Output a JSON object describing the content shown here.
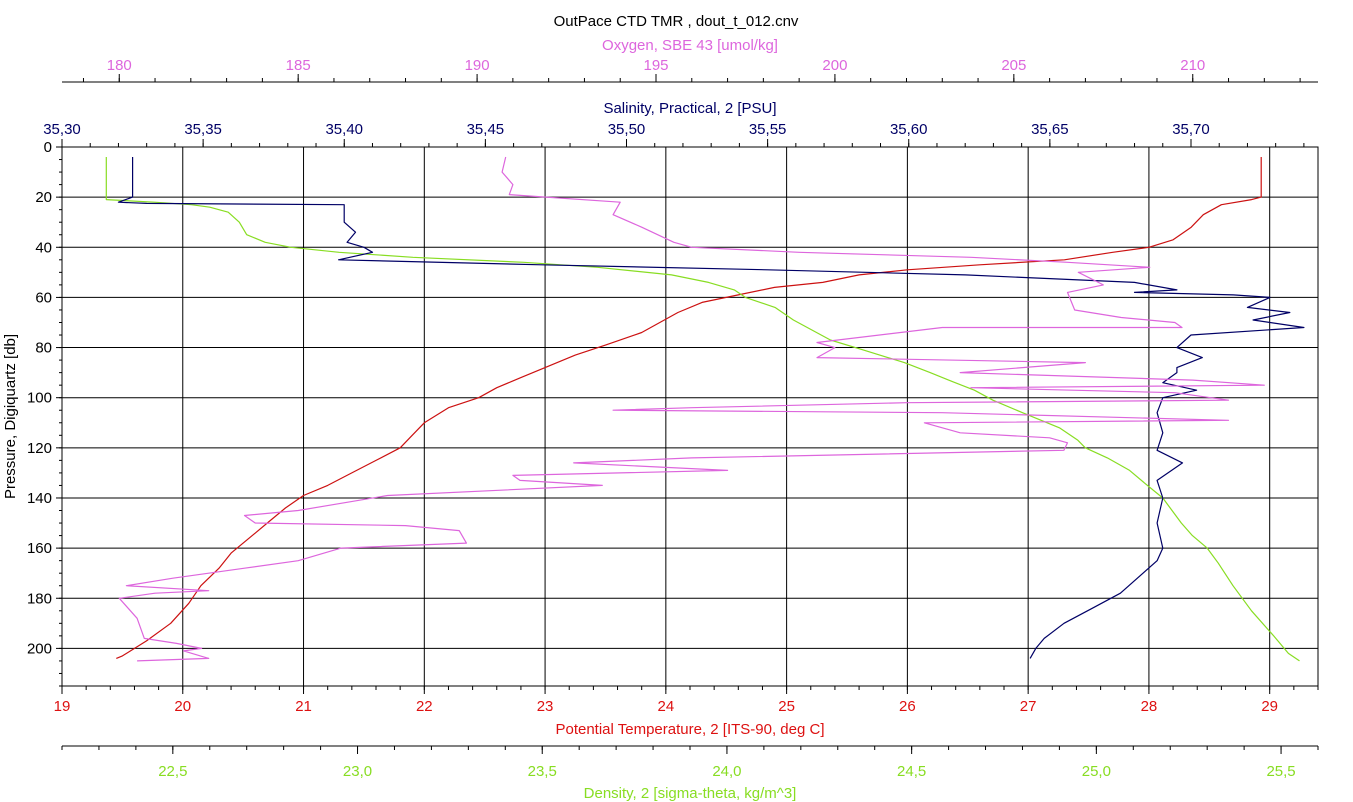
{
  "chart_data": {
    "type": "line",
    "title": "OutPace CTD TMR , dout_t_012.cnv",
    "grid": true,
    "y_axis": {
      "label": "Pressure, Digiquartz [db]",
      "range": [
        0,
        215
      ],
      "inverted": true,
      "ticks": [
        "0",
        "20",
        "40",
        "60",
        "80",
        "100",
        "120",
        "140",
        "160",
        "180",
        "200"
      ],
      "color": "#000000"
    },
    "x_axes": [
      {
        "id": "temperature",
        "label": "Potential Temperature, 2 [ITS-90, deg C]",
        "position": "bottom",
        "color": "#dd1111",
        "range": [
          19,
          29.4
        ],
        "ticks": [
          "19",
          "20",
          "21",
          "22",
          "23",
          "24",
          "25",
          "26",
          "27",
          "28",
          "29"
        ]
      },
      {
        "id": "density",
        "label": "Density, 2 [sigma-theta, kg/m^3]",
        "position": "bottom-outer",
        "color": "#88dd22",
        "range": [
          22.2,
          25.6
        ],
        "ticks": [
          "22,5",
          "23,0",
          "23,5",
          "24,0",
          "24,5",
          "25,0",
          "25,5"
        ]
      },
      {
        "id": "salinity",
        "label": "Salinity, Practical, 2 [PSU]",
        "position": "top",
        "color": "#000066",
        "range": [
          35.3,
          35.745
        ],
        "ticks": [
          "35,30",
          "35,35",
          "35,40",
          "35,45",
          "35,50",
          "35,55",
          "35,60",
          "35,65",
          "35,70"
        ]
      },
      {
        "id": "oxygen",
        "label": "Oxygen, SBE 43 [umol/kg]",
        "position": "top-outer",
        "color": "#dd66dd",
        "range": [
          178.4,
          213.5
        ],
        "ticks": [
          "180",
          "185",
          "190",
          "195",
          "200",
          "205",
          "210"
        ]
      }
    ],
    "series": [
      {
        "axis": "temperature",
        "color": "#cc1111",
        "points": [
          [
            28.93,
            4
          ],
          [
            28.93,
            20
          ],
          [
            28.85,
            21
          ],
          [
            28.6,
            23
          ],
          [
            28.45,
            27
          ],
          [
            28.35,
            32
          ],
          [
            28.2,
            37
          ],
          [
            28.0,
            40
          ],
          [
            27.7,
            42
          ],
          [
            27.3,
            45
          ],
          [
            26.6,
            47
          ],
          [
            26.0,
            49
          ],
          [
            25.6,
            51
          ],
          [
            25.3,
            54
          ],
          [
            24.9,
            56
          ],
          [
            24.6,
            59
          ],
          [
            24.3,
            62
          ],
          [
            24.1,
            66
          ],
          [
            23.95,
            70
          ],
          [
            23.8,
            74
          ],
          [
            23.5,
            79
          ],
          [
            23.25,
            83
          ],
          [
            23.0,
            88
          ],
          [
            22.8,
            92
          ],
          [
            22.6,
            96
          ],
          [
            22.45,
            100
          ],
          [
            22.2,
            104
          ],
          [
            22.0,
            110
          ],
          [
            21.9,
            115
          ],
          [
            21.8,
            120
          ],
          [
            21.6,
            125
          ],
          [
            21.4,
            130
          ],
          [
            21.2,
            135
          ],
          [
            21.0,
            139
          ],
          [
            20.85,
            144
          ],
          [
            20.7,
            150
          ],
          [
            20.55,
            156
          ],
          [
            20.4,
            162
          ],
          [
            20.3,
            168
          ],
          [
            20.15,
            175
          ],
          [
            20.05,
            182
          ],
          [
            19.9,
            190
          ],
          [
            19.7,
            197
          ],
          [
            19.5,
            203
          ],
          [
            19.45,
            204
          ]
        ]
      },
      {
        "axis": "density",
        "color": "#88dd22",
        "points": [
          [
            22.32,
            4
          ],
          [
            22.32,
            21
          ],
          [
            22.45,
            22
          ],
          [
            22.55,
            23
          ],
          [
            22.6,
            24
          ],
          [
            22.65,
            26
          ],
          [
            22.68,
            30
          ],
          [
            22.7,
            35
          ],
          [
            22.75,
            38
          ],
          [
            22.82,
            40
          ],
          [
            22.95,
            42
          ],
          [
            23.15,
            44
          ],
          [
            23.45,
            46
          ],
          [
            23.65,
            48
          ],
          [
            23.85,
            51
          ],
          [
            23.95,
            54
          ],
          [
            24.02,
            57
          ],
          [
            24.05,
            60
          ],
          [
            24.13,
            64
          ],
          [
            24.18,
            69
          ],
          [
            24.23,
            73
          ],
          [
            24.28,
            77
          ],
          [
            24.37,
            81
          ],
          [
            24.48,
            86
          ],
          [
            24.55,
            90
          ],
          [
            24.6,
            93
          ],
          [
            24.67,
            97
          ],
          [
            24.72,
            101
          ],
          [
            24.8,
            106
          ],
          [
            24.9,
            112
          ],
          [
            24.95,
            117
          ],
          [
            24.97,
            120
          ],
          [
            25.03,
            124
          ],
          [
            25.09,
            129
          ],
          [
            25.13,
            134
          ],
          [
            25.18,
            140
          ],
          [
            25.21,
            146
          ],
          [
            25.23,
            150
          ],
          [
            25.26,
            155
          ],
          [
            25.3,
            160
          ],
          [
            25.33,
            166
          ],
          [
            25.37,
            175
          ],
          [
            25.42,
            185
          ],
          [
            25.48,
            195
          ],
          [
            25.52,
            202
          ],
          [
            25.55,
            205
          ]
        ]
      },
      {
        "axis": "salinity",
        "color": "#000066",
        "points": [
          [
            35.325,
            4
          ],
          [
            35.325,
            20
          ],
          [
            35.32,
            22
          ],
          [
            35.33,
            22.5
          ],
          [
            35.4,
            23
          ],
          [
            35.4,
            30
          ],
          [
            35.404,
            34
          ],
          [
            35.401,
            38
          ],
          [
            35.407,
            40
          ],
          [
            35.41,
            42
          ],
          [
            35.398,
            45
          ],
          [
            35.47,
            47
          ],
          [
            35.55,
            49
          ],
          [
            35.62,
            51
          ],
          [
            35.68,
            54
          ],
          [
            35.695,
            57
          ],
          [
            35.68,
            58
          ],
          [
            35.715,
            59
          ],
          [
            35.728,
            60
          ],
          [
            35.72,
            64
          ],
          [
            35.735,
            66
          ],
          [
            35.722,
            69
          ],
          [
            35.74,
            72
          ],
          [
            35.7,
            75
          ],
          [
            35.695,
            80
          ],
          [
            35.704,
            84
          ],
          [
            35.695,
            88
          ],
          [
            35.695,
            90
          ],
          [
            35.69,
            94
          ],
          [
            35.702,
            97
          ],
          [
            35.69,
            100
          ],
          [
            35.688,
            106
          ],
          [
            35.69,
            114
          ],
          [
            35.688,
            121
          ],
          [
            35.697,
            126
          ],
          [
            35.688,
            133
          ],
          [
            35.69,
            140
          ],
          [
            35.688,
            150
          ],
          [
            35.69,
            160
          ],
          [
            35.688,
            165
          ],
          [
            35.683,
            170
          ],
          [
            35.675,
            178
          ],
          [
            35.665,
            184
          ],
          [
            35.655,
            190
          ],
          [
            35.648,
            196
          ],
          [
            35.645,
            200
          ],
          [
            35.643,
            204
          ]
        ]
      },
      {
        "axis": "oxygen",
        "color": "#dd66dd",
        "points": [
          [
            190.8,
            4
          ],
          [
            190.7,
            10
          ],
          [
            191,
            15
          ],
          [
            190.9,
            19
          ],
          [
            194,
            22
          ],
          [
            193.8,
            27
          ],
          [
            194.6,
            32
          ],
          [
            195.5,
            38
          ],
          [
            196,
            40
          ],
          [
            199,
            42
          ],
          [
            203.8,
            44
          ],
          [
            206.5,
            46
          ],
          [
            208.8,
            48
          ],
          [
            206.8,
            50
          ],
          [
            207.5,
            55
          ],
          [
            206.5,
            58
          ],
          [
            206.7,
            65
          ],
          [
            208,
            68
          ],
          [
            209.5,
            70
          ],
          [
            209.7,
            72
          ],
          [
            203,
            72
          ],
          [
            199.5,
            78
          ],
          [
            200,
            80
          ],
          [
            199.5,
            84
          ],
          [
            207,
            86
          ],
          [
            203.5,
            90
          ],
          [
            210,
            93
          ],
          [
            212,
            95
          ],
          [
            203.8,
            96
          ],
          [
            209.5,
            98
          ],
          [
            211,
            101
          ],
          [
            202,
            102
          ],
          [
            196,
            104
          ],
          [
            193.8,
            105
          ],
          [
            203,
            106
          ],
          [
            211,
            109
          ],
          [
            202.5,
            110
          ],
          [
            203.5,
            114
          ],
          [
            206,
            116
          ],
          [
            206.5,
            118
          ],
          [
            206.4,
            121
          ],
          [
            196,
            124
          ],
          [
            192.7,
            126
          ],
          [
            197,
            129
          ],
          [
            191,
            131
          ],
          [
            191.2,
            133
          ],
          [
            193.5,
            135
          ],
          [
            187.5,
            139
          ],
          [
            185,
            145
          ],
          [
            183.5,
            147
          ],
          [
            183.8,
            150
          ],
          [
            188,
            151
          ],
          [
            189.5,
            153
          ],
          [
            189.7,
            158
          ],
          [
            186.2,
            160
          ],
          [
            185,
            165
          ],
          [
            183.5,
            168
          ],
          [
            181.5,
            172
          ],
          [
            180.2,
            175
          ],
          [
            182.5,
            177
          ],
          [
            181,
            178
          ],
          [
            180,
            180
          ],
          [
            180.5,
            188
          ],
          [
            180.7,
            196
          ],
          [
            181.6,
            198
          ],
          [
            182.3,
            200
          ],
          [
            181.8,
            201
          ],
          [
            182.5,
            204
          ],
          [
            180.5,
            205
          ]
        ]
      }
    ]
  }
}
